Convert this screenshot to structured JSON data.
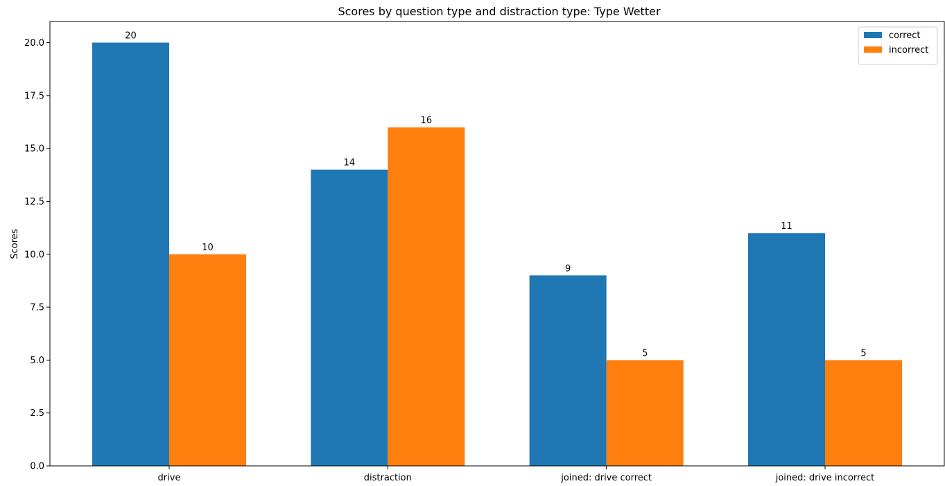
{
  "chart_data": {
    "type": "bar",
    "title": "Scores by question type and distraction type: Type Wetter",
    "xlabel": "",
    "ylabel": "Scores",
    "categories": [
      "drive",
      "distraction",
      "joined: drive correct",
      "joined: drive incorrect"
    ],
    "series": [
      {
        "name": "correct",
        "color": "#1f77b4",
        "values": [
          20,
          14,
          9,
          11
        ]
      },
      {
        "name": "incorrect",
        "color": "#ff7f0e",
        "values": [
          10,
          16,
          5,
          5
        ]
      }
    ],
    "ylim": [
      0,
      21
    ],
    "yticks": [
      "0.0",
      "2.5",
      "5.0",
      "7.5",
      "10.0",
      "12.5",
      "15.0",
      "17.5",
      "20.0"
    ],
    "grid": false,
    "legend_position": "top-right"
  }
}
